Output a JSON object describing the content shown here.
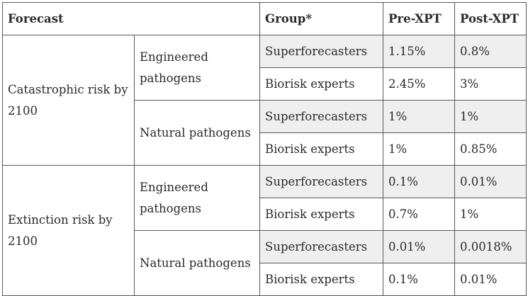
{
  "headers": {
    "forecast": "Forecast",
    "group": "Group*",
    "pre": "Pre-XPT",
    "post": "Post-XPT"
  },
  "sections": [
    {
      "forecast": "Catastrophic risk by 2100",
      "subgroups": [
        {
          "pathogen": "Engineered pathogens",
          "rows": [
            {
              "group": "Superforecasters",
              "pre": "1.15%",
              "post": "0.8%"
            },
            {
              "group": "Biorisk experts",
              "pre": "2.45%",
              "post": "3%"
            }
          ]
        },
        {
          "pathogen": "Natural pathogens",
          "rows": [
            {
              "group": "Superforecasters",
              "pre": "1%",
              "post": "1%"
            },
            {
              "group": "Biorisk experts",
              "pre": "1%",
              "post": "0.85%"
            }
          ]
        }
      ]
    },
    {
      "forecast": "Extinction risk by 2100",
      "subgroups": [
        {
          "pathogen": "Engineered pathogens",
          "rows": [
            {
              "group": "Superforecasters",
              "pre": "0.1%",
              "post": "0.01%"
            },
            {
              "group": "Biorisk experts",
              "pre": "0.7%",
              "post": "1%"
            }
          ]
        },
        {
          "pathogen": "Natural pathogens",
          "rows": [
            {
              "group": "Superforecasters",
              "pre": "0.01%",
              "post": "0.0018%"
            },
            {
              "group": "Biorisk experts",
              "pre": "0.1%",
              "post": "0.01%"
            }
          ]
        }
      ]
    }
  ]
}
